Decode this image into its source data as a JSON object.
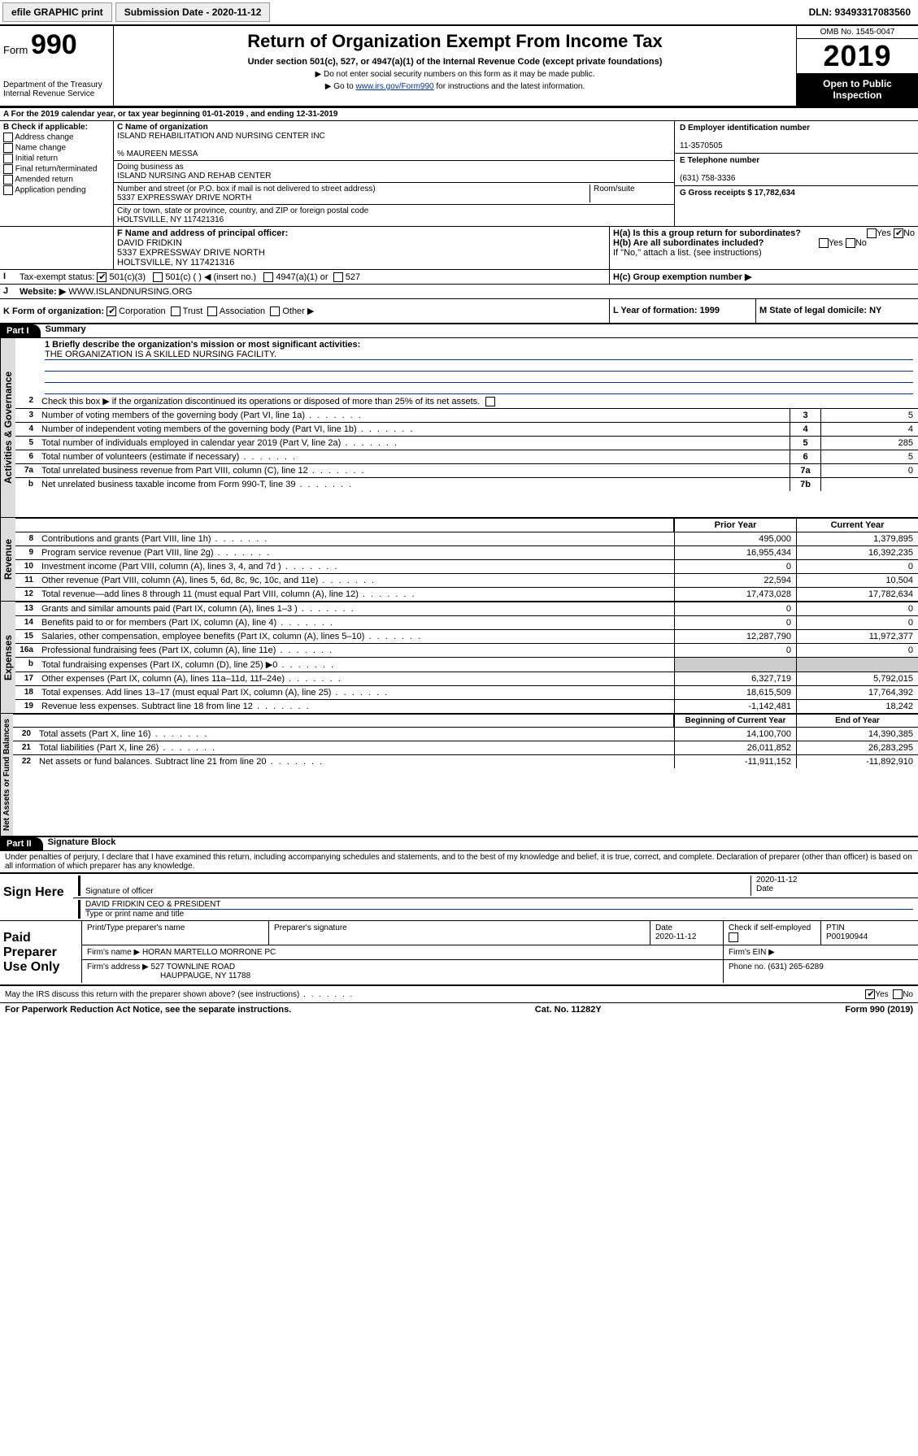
{
  "toolbar": {
    "efile_label": "efile GRAPHIC print",
    "subdate_label": "Submission Date - 2020-11-12",
    "dln_label": "DLN: 93493317083560"
  },
  "header": {
    "form_prefix": "Form",
    "form_number": "990",
    "dept": "Department of the Treasury",
    "irs": "Internal Revenue Service",
    "title": "Return of Organization Exempt From Income Tax",
    "subtitle": "Under section 501(c), 527, or 4947(a)(1) of the Internal Revenue Code (except private foundations)",
    "note1": "▶ Do not enter social security numbers on this form as it may be made public.",
    "note2_prefix": "▶ Go to ",
    "note2_link": "www.irs.gov/Form990",
    "note2_suffix": " for instructions and the latest information.",
    "omb": "OMB No. 1545-0047",
    "year": "2019",
    "inspection1": "Open to Public",
    "inspection2": "Inspection"
  },
  "periodA": "For the 2019 calendar year, or tax year beginning 01-01-2019   , and ending 12-31-2019",
  "B": {
    "label": "B Check if applicable:",
    "opts": [
      "Address change",
      "Name change",
      "Initial return",
      "Final return/terminated",
      "Amended return",
      "Application pending"
    ]
  },
  "C": {
    "label": "C Name of organization",
    "name": "ISLAND REHABILITATION AND NURSING CENTER INC",
    "care_label": "% MAUREEN MESSA",
    "dba_label": "Doing business as",
    "dba": "ISLAND NURSING AND REHAB CENTER",
    "addr_label": "Number and street (or P.O. box if mail is not delivered to street address)",
    "room_label": "Room/suite",
    "addr": "5337 EXPRESSWAY DRIVE NORTH",
    "city_label": "City or town, state or province, country, and ZIP or foreign postal code",
    "city": "HOLTSVILLE, NY  117421316"
  },
  "D": {
    "label": "D Employer identification number",
    "value": "11-3570505"
  },
  "E": {
    "label": "E Telephone number",
    "value": "(631) 758-3336"
  },
  "G": {
    "label": "G Gross receipts $ 17,782,634"
  },
  "F": {
    "label": "F  Name and address of principal officer:",
    "name": "DAVID FRIDKIN",
    "addr1": "5337 EXPRESSWAY DRIVE NORTH",
    "addr2": "HOLTSVILLE, NY  117421316"
  },
  "H": {
    "a": "H(a)  Is this a group return for subordinates?",
    "b": "H(b)  Are all subordinates included?",
    "bnote": "If \"No,\" attach a list. (see instructions)",
    "c": "H(c)  Group exemption number ▶"
  },
  "I": {
    "label": "Tax-exempt status:",
    "c3": "501(c)(3)",
    "c": "501(c) (  ) ◀ (insert no.)",
    "a1": "4947(a)(1) or",
    "s527": "527"
  },
  "J": {
    "label": "Website: ▶",
    "value": "WWW.ISLANDNURSING.ORG"
  },
  "K": {
    "label": "K Form of organization:",
    "corp": "Corporation",
    "trust": "Trust",
    "assoc": "Association",
    "other": "Other ▶"
  },
  "L": {
    "label": "L Year of formation: 1999"
  },
  "M": {
    "label": "M State of legal domicile: NY"
  },
  "part1": {
    "tab": "Part I",
    "title": "Summary"
  },
  "governance": {
    "tab": "Activities & Governance",
    "q1": "1  Briefly describe the organization's mission or most significant activities:",
    "mission": "THE ORGANIZATION IS A SKILLED NURSING FACILITY.",
    "q2": "Check this box ▶        if the organization discontinued its operations or disposed of more than 25% of its net assets.",
    "rows": [
      {
        "n": "3",
        "d": "Number of voting members of the governing body (Part VI, line 1a)",
        "box": "3",
        "v": "5"
      },
      {
        "n": "4",
        "d": "Number of independent voting members of the governing body (Part VI, line 1b)",
        "box": "4",
        "v": "4"
      },
      {
        "n": "5",
        "d": "Total number of individuals employed in calendar year 2019 (Part V, line 2a)",
        "box": "5",
        "v": "285"
      },
      {
        "n": "6",
        "d": "Total number of volunteers (estimate if necessary)",
        "box": "6",
        "v": "5"
      },
      {
        "n": "7a",
        "d": "Total unrelated business revenue from Part VIII, column (C), line 12",
        "box": "7a",
        "v": "0"
      },
      {
        "n": "b",
        "d": "Net unrelated business taxable income from Form 990-T, line 39",
        "box": "7b",
        "v": ""
      }
    ]
  },
  "revenue": {
    "tab": "Revenue",
    "h1": "Prior Year",
    "h2": "Current Year",
    "rows": [
      {
        "n": "8",
        "d": "Contributions and grants (Part VIII, line 1h)",
        "v1": "495,000",
        "v2": "1,379,895"
      },
      {
        "n": "9",
        "d": "Program service revenue (Part VIII, line 2g)",
        "v1": "16,955,434",
        "v2": "16,392,235"
      },
      {
        "n": "10",
        "d": "Investment income (Part VIII, column (A), lines 3, 4, and 7d )",
        "v1": "0",
        "v2": "0"
      },
      {
        "n": "11",
        "d": "Other revenue (Part VIII, column (A), lines 5, 6d, 8c, 9c, 10c, and 11e)",
        "v1": "22,594",
        "v2": "10,504"
      },
      {
        "n": "12",
        "d": "Total revenue—add lines 8 through 11 (must equal Part VIII, column (A), line 12)",
        "v1": "17,473,028",
        "v2": "17,782,634"
      }
    ]
  },
  "expenses": {
    "tab": "Expenses",
    "rows": [
      {
        "n": "13",
        "d": "Grants and similar amounts paid (Part IX, column (A), lines 1–3 )",
        "v1": "0",
        "v2": "0"
      },
      {
        "n": "14",
        "d": "Benefits paid to or for members (Part IX, column (A), line 4)",
        "v1": "0",
        "v2": "0"
      },
      {
        "n": "15",
        "d": "Salaries, other compensation, employee benefits (Part IX, column (A), lines 5–10)",
        "v1": "12,287,790",
        "v2": "11,972,377"
      },
      {
        "n": "16a",
        "d": "Professional fundraising fees (Part IX, column (A), line 11e)",
        "v1": "0",
        "v2": "0"
      },
      {
        "n": "b",
        "d": "Total fundraising expenses (Part IX, column (D), line 25) ▶0",
        "v1": "",
        "v2": ""
      },
      {
        "n": "17",
        "d": "Other expenses (Part IX, column (A), lines 11a–11d, 11f–24e)",
        "v1": "6,327,719",
        "v2": "5,792,015"
      },
      {
        "n": "18",
        "d": "Total expenses. Add lines 13–17 (must equal Part IX, column (A), line 25)",
        "v1": "18,615,509",
        "v2": "17,764,392"
      },
      {
        "n": "19",
        "d": "Revenue less expenses. Subtract line 18 from line 12",
        "v1": "-1,142,481",
        "v2": "18,242"
      }
    ]
  },
  "netassets": {
    "tab": "Net Assets or Fund Balances",
    "h1": "Beginning of Current Year",
    "h2": "End of Year",
    "rows": [
      {
        "n": "20",
        "d": "Total assets (Part X, line 16)",
        "v1": "14,100,700",
        "v2": "14,390,385"
      },
      {
        "n": "21",
        "d": "Total liabilities (Part X, line 26)",
        "v1": "26,011,852",
        "v2": "26,283,295"
      },
      {
        "n": "22",
        "d": "Net assets or fund balances. Subtract line 21 from line 20",
        "v1": "-11,911,152",
        "v2": "-11,892,910"
      }
    ]
  },
  "part2": {
    "tab": "Part II",
    "title": "Signature Block"
  },
  "perjury": "Under penalties of perjury, I declare that I have examined this return, including accompanying schedules and statements, and to the best of my knowledge and belief, it is true, correct, and complete. Declaration of preparer (other than officer) is based on all information of which preparer has any knowledge.",
  "sign": {
    "label": "Sign Here",
    "sig_label": "Signature of officer",
    "date": "2020-11-12",
    "date_label": "Date",
    "name": "DAVID FRIDKIN CEO & PRESIDENT",
    "name_label": "Type or print name and title"
  },
  "paid": {
    "label": "Paid Preparer Use Only",
    "h1": "Print/Type preparer's name",
    "h2": "Preparer's signature",
    "h3": "Date",
    "h3v": "2020-11-12",
    "h4": "Check         if self-employed",
    "h5": "PTIN",
    "h5v": "P00190944",
    "firm_label": "Firm's name    ▶",
    "firm": "HORAN MARTELLO MORRONE PC",
    "ein_label": "Firm's EIN ▶",
    "addr_label": "Firm's address ▶",
    "addr1": "527 TOWNLINE ROAD",
    "addr2": "HAUPPAUGE, NY  11788",
    "phone_label": "Phone no. (631) 265-6289"
  },
  "discuss": "May the IRS discuss this return with the preparer shown above? (see instructions)",
  "footer": {
    "pra": "For Paperwork Reduction Act Notice, see the separate instructions.",
    "cat": "Cat. No. 11282Y",
    "form": "Form 990 (2019)"
  },
  "yes": "Yes",
  "no": "No"
}
